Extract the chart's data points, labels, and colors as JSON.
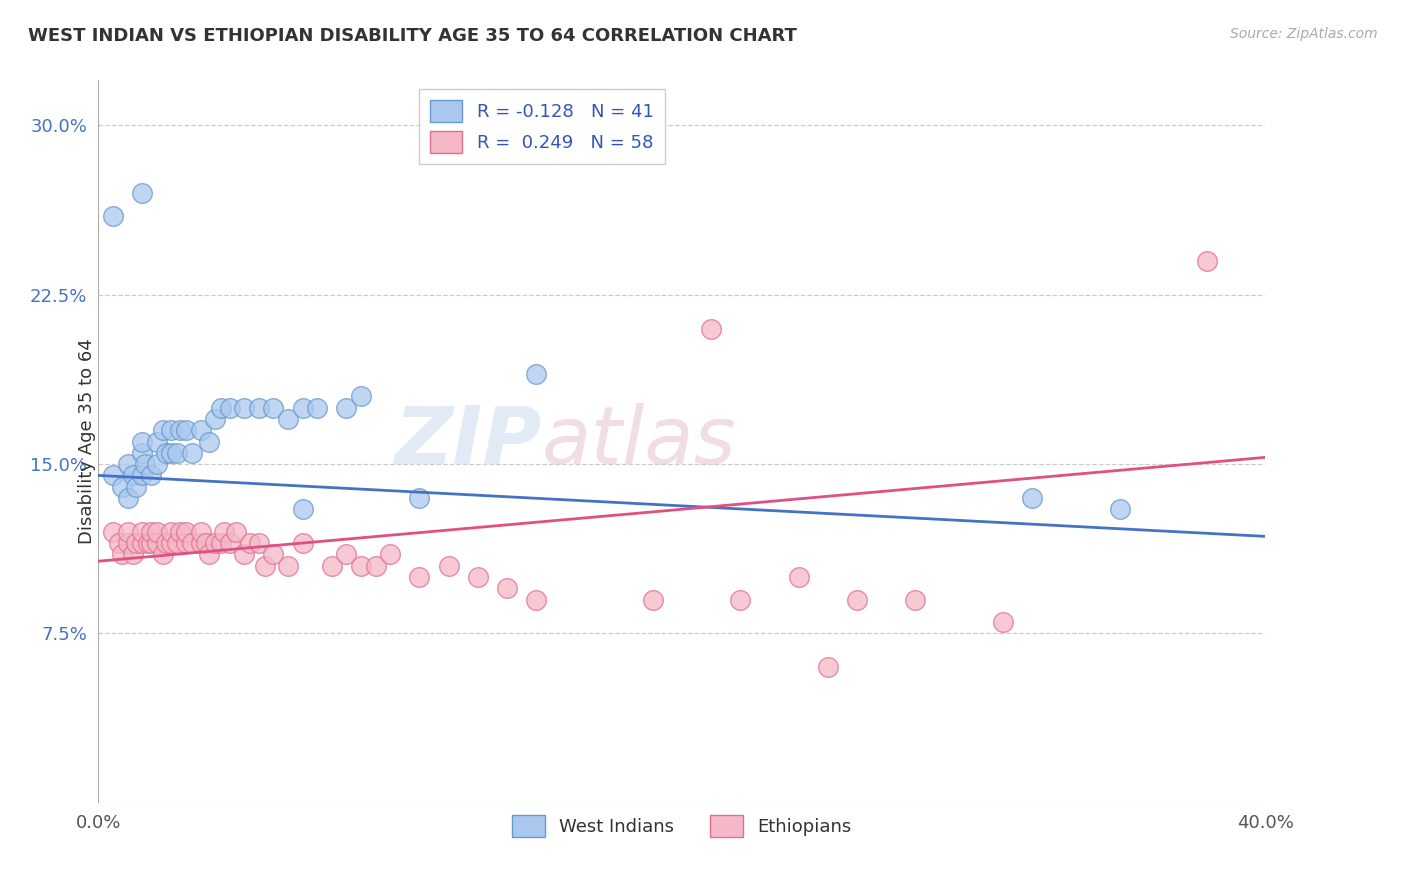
{
  "title": "WEST INDIAN VS ETHIOPIAN DISABILITY AGE 35 TO 64 CORRELATION CHART",
  "source": "Source: ZipAtlas.com",
  "ylabel": "Disability Age 35 to 64",
  "xlim": [
    0.0,
    0.4
  ],
  "ylim": [
    0.0,
    0.32
  ],
  "yticks": [
    0.075,
    0.15,
    0.225,
    0.3
  ],
  "ytick_labels": [
    "7.5%",
    "15.0%",
    "22.5%",
    "30.0%"
  ],
  "grid_color": "#cccccc",
  "background_color": "#ffffff",
  "watermark_zip": "ZIP",
  "watermark_atlas": "atlas",
  "west_indian_color": "#aac8ee",
  "ethiopian_color": "#f4b8c8",
  "west_indian_edge_color": "#6699cc",
  "ethiopian_edge_color": "#e07090",
  "west_indian_line_color": "#4472c4",
  "ethiopian_line_color": "#e05080",
  "wi_line_start_y": 0.145,
  "wi_line_end_y": 0.118,
  "eth_line_start_y": 0.107,
  "eth_line_end_y": 0.153,
  "west_indian_x": [
    0.005,
    0.008,
    0.01,
    0.01,
    0.012,
    0.013,
    0.015,
    0.015,
    0.015,
    0.016,
    0.018,
    0.02,
    0.02,
    0.022,
    0.023,
    0.025,
    0.025,
    0.027,
    0.028,
    0.03,
    0.032,
    0.035,
    0.038,
    0.04,
    0.042,
    0.045,
    0.05,
    0.055,
    0.06,
    0.065,
    0.07,
    0.075,
    0.085,
    0.09,
    0.015,
    0.15,
    0.32,
    0.35,
    0.07,
    0.11,
    0.005
  ],
  "west_indian_y": [
    0.145,
    0.14,
    0.135,
    0.15,
    0.145,
    0.14,
    0.155,
    0.145,
    0.16,
    0.15,
    0.145,
    0.16,
    0.15,
    0.165,
    0.155,
    0.165,
    0.155,
    0.155,
    0.165,
    0.165,
    0.155,
    0.165,
    0.16,
    0.17,
    0.175,
    0.175,
    0.175,
    0.175,
    0.175,
    0.17,
    0.175,
    0.175,
    0.175,
    0.18,
    0.27,
    0.19,
    0.135,
    0.13,
    0.13,
    0.135,
    0.26
  ],
  "ethiopian_x": [
    0.005,
    0.007,
    0.008,
    0.01,
    0.01,
    0.012,
    0.013,
    0.015,
    0.015,
    0.017,
    0.018,
    0.018,
    0.02,
    0.02,
    0.022,
    0.023,
    0.025,
    0.025,
    0.027,
    0.028,
    0.03,
    0.03,
    0.032,
    0.035,
    0.035,
    0.037,
    0.038,
    0.04,
    0.042,
    0.043,
    0.045,
    0.047,
    0.05,
    0.052,
    0.055,
    0.057,
    0.06,
    0.065,
    0.07,
    0.08,
    0.085,
    0.09,
    0.095,
    0.1,
    0.11,
    0.12,
    0.13,
    0.14,
    0.19,
    0.15,
    0.22,
    0.24,
    0.25,
    0.26,
    0.28,
    0.31,
    0.38,
    0.21
  ],
  "ethiopian_y": [
    0.12,
    0.115,
    0.11,
    0.115,
    0.12,
    0.11,
    0.115,
    0.115,
    0.12,
    0.115,
    0.115,
    0.12,
    0.115,
    0.12,
    0.11,
    0.115,
    0.115,
    0.12,
    0.115,
    0.12,
    0.115,
    0.12,
    0.115,
    0.115,
    0.12,
    0.115,
    0.11,
    0.115,
    0.115,
    0.12,
    0.115,
    0.12,
    0.11,
    0.115,
    0.115,
    0.105,
    0.11,
    0.105,
    0.115,
    0.105,
    0.11,
    0.105,
    0.105,
    0.11,
    0.1,
    0.105,
    0.1,
    0.095,
    0.09,
    0.09,
    0.09,
    0.1,
    0.06,
    0.09,
    0.09,
    0.08,
    0.24,
    0.21
  ]
}
